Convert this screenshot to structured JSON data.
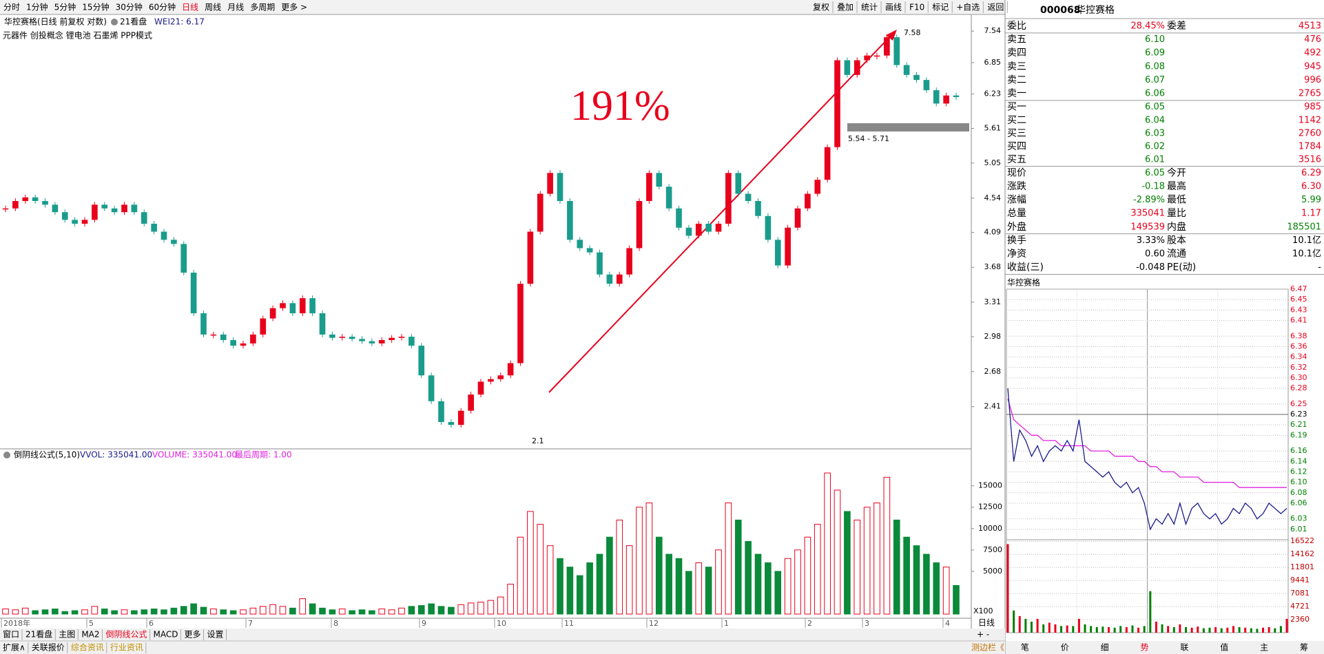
{
  "toolbar": {
    "periods": [
      "分时",
      "1分钟",
      "5分钟",
      "15分钟",
      "30分钟",
      "60分钟",
      "日线",
      "周线",
      "月线",
      "多周期",
      "更多 >"
    ],
    "active": "日线",
    "tools": [
      "复权",
      "叠加",
      "统计",
      "画线",
      "F10",
      "标记",
      "+自选",
      "返回"
    ]
  },
  "main_chart": {
    "type": "candlestick",
    "title": "华控赛格(日线 前复权 对数)",
    "tab": "21看盘",
    "indicator": "WEI21: 6.17",
    "concepts": "元器件 创投概念 锂电池 石墨烯 PPP模式",
    "annotation": "191%",
    "high_label": "7.58",
    "zone_label": "5.54 - 5.71",
    "low_label": "2.1",
    "months": [
      "2018年",
      "5",
      "6",
      "7",
      "8",
      "9",
      "10",
      "11",
      "12",
      "1",
      "2",
      "3",
      "4"
    ],
    "log_scale": true,
    "ylim": [
      2.12,
      7.93
    ],
    "yticks": [
      7.54,
      6.85,
      6.23,
      5.61,
      5.05,
      4.54,
      4.09,
      3.68,
      3.31,
      2.98,
      2.68,
      2.41
    ],
    "up_color": "#e8001c",
    "down_color": "#1a9c8c",
    "closes": [
      4.4,
      4.5,
      4.55,
      4.5,
      4.45,
      4.35,
      4.25,
      4.2,
      4.25,
      4.45,
      4.4,
      4.35,
      4.45,
      4.35,
      4.2,
      4.1,
      4.0,
      3.95,
      3.62,
      3.2,
      3.0,
      3.0,
      2.95,
      2.9,
      2.92,
      3.0,
      3.15,
      3.25,
      3.3,
      3.2,
      3.35,
      3.2,
      3.0,
      2.97,
      2.98,
      2.96,
      2.94,
      2.92,
      2.95,
      2.97,
      2.98,
      2.9,
      2.65,
      2.45,
      2.3,
      2.28,
      2.38,
      2.5,
      2.6,
      2.62,
      2.65,
      2.75,
      3.5,
      4.1,
      4.6,
      4.9,
      4.5,
      4.0,
      3.9,
      3.85,
      3.6,
      3.5,
      3.6,
      3.9,
      4.5,
      4.9,
      4.7,
      4.4,
      4.15,
      4.05,
      4.2,
      4.1,
      4.2,
      4.9,
      4.6,
      4.5,
      4.3,
      4.0,
      3.7,
      4.15,
      4.4,
      4.6,
      4.8,
      5.3,
      6.9,
      6.6,
      6.9,
      7.0,
      7.0,
      7.4,
      6.8,
      6.6,
      6.5,
      6.3,
      6.05,
      6.2,
      6.17
    ]
  },
  "volume_chart": {
    "type": "bar",
    "formula": "倒阴线公式(5,10)",
    "vvol": "VVOL: 335041.00",
    "volume": "VOLUME: 335041.00",
    "last_period": "最后周期: 1.00",
    "unit": "X100",
    "period": "日线",
    "zoom": "+ -",
    "ylim": [
      0,
      19000
    ],
    "yticks": [
      15000,
      12500,
      10000,
      7500,
      5000
    ],
    "values": [
      600,
      500,
      700,
      400,
      500,
      600,
      300,
      400,
      500,
      900,
      600,
      400,
      500,
      400,
      500,
      600,
      500,
      700,
      900,
      1200,
      800,
      600,
      500,
      400,
      500,
      700,
      900,
      1100,
      900,
      700,
      1800,
      1200,
      700,
      500,
      600,
      400,
      500,
      400,
      600,
      500,
      700,
      900,
      1000,
      1200,
      900,
      800,
      1100,
      1300,
      1400,
      1600,
      2000,
      3500,
      9000,
      12000,
      10500,
      8000,
      6500,
      5500,
      4500,
      6000,
      7000,
      9000,
      11000,
      8000,
      12500,
      13000,
      9000,
      7000,
      6500,
      5000,
      6000,
      5500,
      7500,
      13000,
      11000,
      8500,
      7000,
      6000,
      5000,
      6500,
      7500,
      9000,
      10500,
      16500,
      14500,
      12000,
      11000,
      12500,
      13000,
      16000,
      11000,
      9000,
      8000,
      7000,
      6000,
      5500,
      3350
    ]
  },
  "quote": {
    "code": "000068",
    "name": "华控赛格",
    "ratio": {
      "l1": "委比",
      "v1": "28.45%",
      "l2": "委差",
      "v2": "4513"
    },
    "sells": [
      {
        "label": "卖五",
        "price": "6.10",
        "volume": "476"
      },
      {
        "label": "卖四",
        "price": "6.09",
        "volume": "492"
      },
      {
        "label": "卖三",
        "price": "6.08",
        "volume": "945"
      },
      {
        "label": "卖二",
        "price": "6.07",
        "volume": "996"
      },
      {
        "label": "卖一",
        "price": "6.06",
        "volume": "2765"
      }
    ],
    "buys": [
      {
        "label": "买一",
        "price": "6.05",
        "volume": "985"
      },
      {
        "label": "买二",
        "price": "6.04",
        "volume": "1142"
      },
      {
        "label": "买三",
        "price": "6.03",
        "volume": "2760"
      },
      {
        "label": "买四",
        "price": "6.02",
        "volume": "1784"
      },
      {
        "label": "买五",
        "price": "6.01",
        "volume": "3516"
      }
    ],
    "stats": [
      {
        "l1": "现价",
        "v1": "6.05",
        "c1": "green",
        "l2": "今开",
        "v2": "6.29",
        "c2": "red"
      },
      {
        "l1": "涨跌",
        "v1": "-0.18",
        "c1": "green",
        "l2": "最高",
        "v2": "6.30",
        "c2": "red"
      },
      {
        "l1": "涨幅",
        "v1": "-2.89%",
        "c1": "green",
        "l2": "最低",
        "v2": "5.99",
        "c2": "green"
      },
      {
        "l1": "总量",
        "v1": "335041",
        "c1": "red",
        "l2": "量比",
        "v2": "1.17",
        "c2": "red"
      },
      {
        "l1": "外盘",
        "v1": "149539",
        "c1": "red",
        "l2": "内盘",
        "v2": "185501",
        "c2": "green"
      }
    ],
    "basics": [
      {
        "l1": "换手",
        "v1": "3.33%",
        "l2": "股本",
        "v2": "10.1亿"
      },
      {
        "l1": "净资",
        "v1": "0.60",
        "l2": "流通",
        "v2": "10.1亿"
      },
      {
        "l1": "收益(三)",
        "v1": "-0.048",
        "l2": "PE(动)",
        "v2": "-"
      }
    ]
  },
  "intraday": {
    "type": "line",
    "title": "华控赛格",
    "prev_close": 6.23,
    "color": "#1a1a8c",
    "avg_color": "#e020e0",
    "ylim": [
      5.99,
      6.47
    ],
    "yticks": [
      6.47,
      6.45,
      6.43,
      6.41,
      6.38,
      6.36,
      6.34,
      6.32,
      {
        "value": 6.3,
        "label": "6.30"
      },
      6.28,
      6.25,
      6.23,
      6.21,
      6.19,
      6.16,
      6.14,
      6.12,
      {
        "value": 6.1,
        "label": "6.10"
      },
      6.08,
      6.06,
      6.03,
      6.01
    ],
    "prices": [
      6.28,
      6.14,
      6.2,
      6.18,
      6.15,
      6.17,
      6.14,
      6.16,
      6.17,
      6.16,
      6.18,
      6.16,
      6.22,
      6.14,
      6.13,
      6.12,
      6.11,
      6.12,
      6.1,
      6.09,
      6.1,
      6.08,
      6.09,
      6.06,
      6.01,
      6.03,
      6.02,
      6.04,
      6.02,
      6.06,
      6.02,
      6.05,
      6.06,
      6.04,
      6.03,
      6.04,
      6.02,
      6.03,
      6.05,
      6.04,
      6.06,
      6.05,
      6.03,
      6.04,
      6.06,
      6.05,
      6.04,
      6.05
    ],
    "avg": [
      6.26,
      6.22,
      6.21,
      6.2,
      6.19,
      6.19,
      6.18,
      6.18,
      6.18,
      6.17,
      6.17,
      6.17,
      6.17,
      6.17,
      6.16,
      6.16,
      6.16,
      6.16,
      6.15,
      6.15,
      6.15,
      6.15,
      6.14,
      6.14,
      6.13,
      6.13,
      6.12,
      6.12,
      6.12,
      6.11,
      6.11,
      6.11,
      6.11,
      6.1,
      6.1,
      6.1,
      6.1,
      6.1,
      6.1,
      6.09,
      6.09,
      6.09,
      6.09,
      6.09,
      6.09,
      6.09,
      6.09,
      6.09
    ],
    "vol_ylim": [
      0,
      16800
    ],
    "vol_yticks": [
      16522,
      14162,
      11801,
      9441,
      7081,
      4721,
      2360
    ],
    "volumes": [
      16000,
      4000,
      3000,
      2500,
      2000,
      2500,
      1500,
      1800,
      1500,
      1200,
      1300,
      1200,
      2500,
      1500,
      1200,
      1000,
      1100,
      1000,
      900,
      1200,
      1000,
      1300,
      900,
      1200,
      7500,
      2000,
      1500,
      1200,
      1000,
      1500,
      1000,
      900,
      1100,
      800,
      900,
      1000,
      800,
      900,
      1200,
      1000,
      900,
      800,
      700,
      900,
      1000,
      800,
      1200,
      2500
    ],
    "tabs": [
      "笔",
      "价",
      "细",
      "势",
      "联",
      "值",
      "主",
      "筹"
    ],
    "active_tab": "势"
  },
  "bottom_tabs": {
    "row1": [
      "窗口",
      "21看盘",
      "主图",
      "MA2",
      "倒阴线公式",
      "MACD",
      "更多",
      "设置"
    ],
    "active1": "倒阴线公式",
    "row2": [
      "扩展∧",
      "关联报价",
      "综合资讯",
      "行业资讯"
    ],
    "sidebar": "测边栏《"
  }
}
